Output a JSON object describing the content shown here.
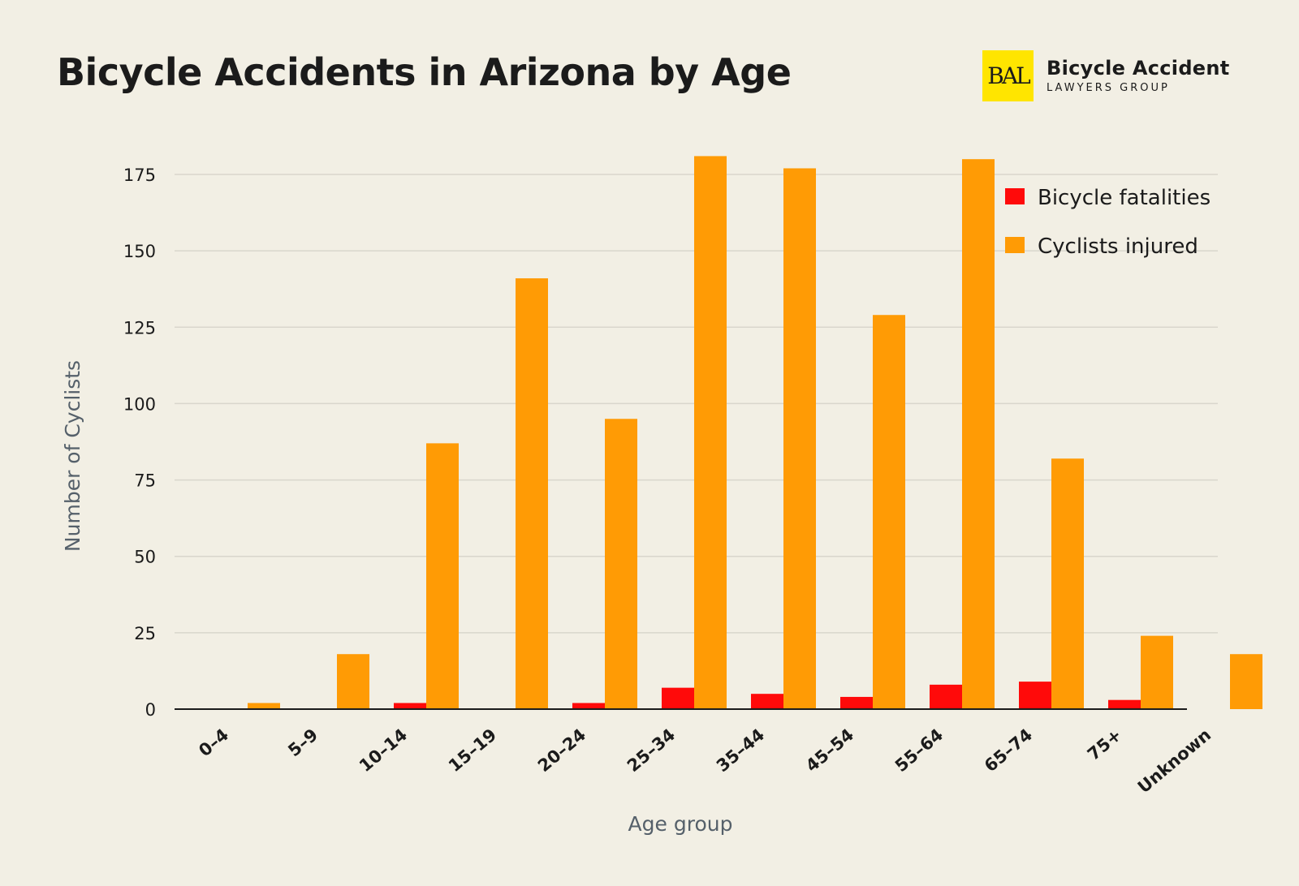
{
  "header": {
    "title": "Bicycle Accidents in Arizona by Age",
    "logo": {
      "mark": "BAL",
      "line1": "Bicycle Accident",
      "line2": "LAWYERS GROUP",
      "mark_color": "#ffe500"
    }
  },
  "chart_data": {
    "type": "bar",
    "categories": [
      "0–4",
      "5–9",
      "10–14",
      "15–19",
      "20–24",
      "25–34",
      "35–44",
      "45–54",
      "55–64",
      "65–74",
      "75+",
      "Unknown"
    ],
    "series": [
      {
        "name": "Bicycle fatalities",
        "color": "#ff0a0a",
        "values": [
          0,
          0,
          2,
          0,
          2,
          7,
          5,
          4,
          8,
          9,
          3,
          0
        ]
      },
      {
        "name": "Cyclists injured",
        "color": "#ff9b05",
        "values": [
          2,
          18,
          87,
          141,
          95,
          181,
          177,
          129,
          180,
          82,
          24,
          18
        ]
      }
    ],
    "xlabel": "Age group",
    "ylabel": "Number of Cyclists",
    "ylim": [
      0,
      175
    ],
    "yticks": [
      0,
      25,
      50,
      75,
      100,
      125,
      150,
      175
    ],
    "grid": true,
    "legend_position": "top-right"
  }
}
